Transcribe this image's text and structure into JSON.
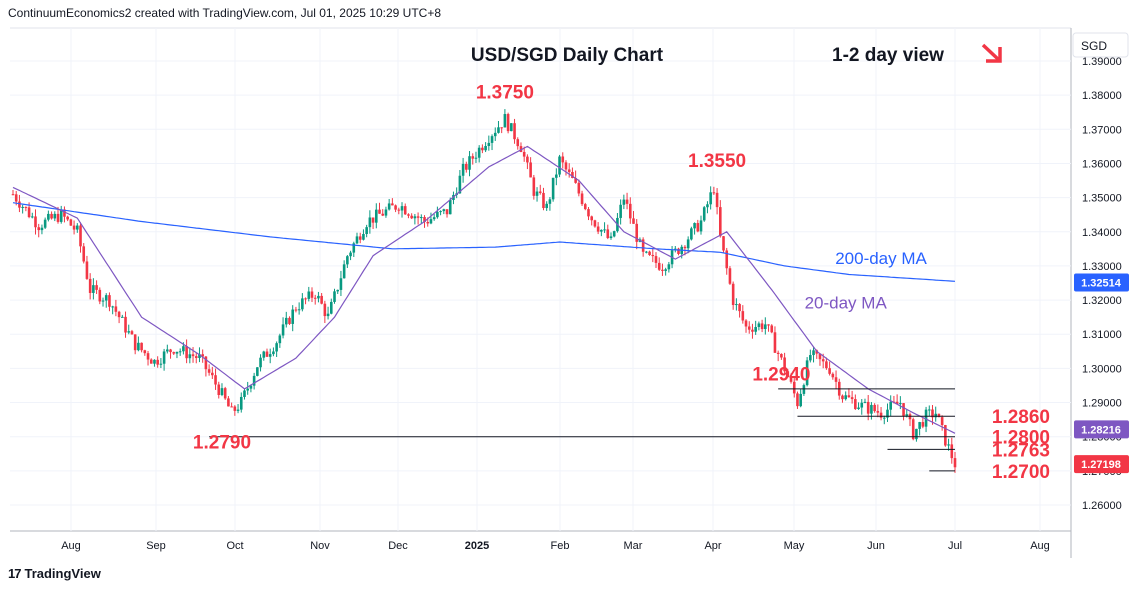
{
  "header": {
    "text": "ContinuumEconomics2 created with TradingView.com, Jul 01, 2025 10:29 UTC+8"
  },
  "footer": {
    "brand": "TradingView",
    "logo": "17"
  },
  "colors": {
    "up": "#089981",
    "down": "#f23645",
    "ma200": "#2962ff",
    "ma20": "#7e57c2",
    "annot": "#f23645",
    "level": "#131722"
  },
  "chart_data": {
    "type": "candlestick",
    "title": "USD/SGD Daily Chart",
    "view": "1-2 day view",
    "currency": "SGD",
    "ylim": [
      1.254,
      1.395
    ],
    "yticks": [
      "1.26000",
      "1.27000",
      "1.28000",
      "1.29000",
      "1.30000",
      "1.31000",
      "1.32000",
      "1.33000",
      "1.34000",
      "1.35000",
      "1.36000",
      "1.37000",
      "1.38000",
      "1.39000"
    ],
    "xticks": [
      "Aug",
      "Sep",
      "Oct",
      "Nov",
      "Dec",
      "2025",
      "Feb",
      "Mar",
      "Apr",
      "May",
      "Jun",
      "Jul",
      "Aug"
    ],
    "price_anchors": [
      [
        0,
        1.351
      ],
      [
        8,
        1.342
      ],
      [
        15,
        1.345
      ],
      [
        20,
        1.34
      ],
      [
        24,
        1.323
      ],
      [
        30,
        1.32
      ],
      [
        38,
        1.307
      ],
      [
        44,
        1.302
      ],
      [
        50,
        1.306
      ],
      [
        58,
        1.303
      ],
      [
        64,
        1.294
      ],
      [
        68,
        1.287
      ],
      [
        71,
        1.29
      ],
      [
        76,
        1.301
      ],
      [
        82,
        1.308
      ],
      [
        88,
        1.318
      ],
      [
        94,
        1.322
      ],
      [
        98,
        1.315
      ],
      [
        104,
        1.333
      ],
      [
        110,
        1.343
      ],
      [
        120,
        1.348
      ],
      [
        128,
        1.343
      ],
      [
        135,
        1.346
      ],
      [
        140,
        1.358
      ],
      [
        148,
        1.368
      ],
      [
        153,
        1.373
      ],
      [
        158,
        1.365
      ],
      [
        162,
        1.352
      ],
      [
        166,
        1.347
      ],
      [
        170,
        1.361
      ],
      [
        174,
        1.355
      ],
      [
        180,
        1.344
      ],
      [
        186,
        1.337
      ],
      [
        190,
        1.35
      ],
      [
        196,
        1.333
      ],
      [
        202,
        1.33
      ],
      [
        208,
        1.336
      ],
      [
        214,
        1.343
      ],
      [
        218,
        1.353
      ],
      [
        220,
        1.338
      ],
      [
        224,
        1.32
      ],
      [
        228,
        1.312
      ],
      [
        234,
        1.313
      ],
      [
        240,
        1.3
      ],
      [
        244,
        1.29
      ],
      [
        248,
        1.304
      ],
      [
        254,
        1.3
      ],
      [
        258,
        1.292
      ],
      [
        264,
        1.289
      ],
      [
        270,
        1.287
      ],
      [
        276,
        1.29
      ],
      [
        280,
        1.281
      ],
      [
        284,
        1.286
      ],
      [
        287,
        1.287
      ],
      [
        290,
        1.279
      ],
      [
        293,
        1.272
      ]
    ],
    "ma200_anchors": [
      [
        0,
        1.3485
      ],
      [
        40,
        1.343
      ],
      [
        80,
        1.3385
      ],
      [
        118,
        1.335
      ],
      [
        150,
        1.3355
      ],
      [
        170,
        1.337
      ],
      [
        200,
        1.335
      ],
      [
        220,
        1.334
      ],
      [
        240,
        1.33
      ],
      [
        260,
        1.3275
      ],
      [
        293,
        1.3255
      ]
    ],
    "ma20_anchors": [
      [
        0,
        1.353
      ],
      [
        20,
        1.344
      ],
      [
        40,
        1.315
      ],
      [
        58,
        1.304
      ],
      [
        72,
        1.294
      ],
      [
        88,
        1.303
      ],
      [
        100,
        1.315
      ],
      [
        112,
        1.333
      ],
      [
        128,
        1.343
      ],
      [
        148,
        1.359
      ],
      [
        160,
        1.365
      ],
      [
        176,
        1.355
      ],
      [
        190,
        1.34
      ],
      [
        206,
        1.332
      ],
      [
        222,
        1.34
      ],
      [
        236,
        1.323
      ],
      [
        250,
        1.305
      ],
      [
        266,
        1.294
      ],
      [
        280,
        1.287
      ],
      [
        293,
        1.281
      ]
    ],
    "annotations": [
      {
        "text": "1.3750",
        "x": 153,
        "y": 1.379
      },
      {
        "text": "1.3550",
        "x": 219,
        "y": 1.359
      },
      {
        "text": "1.2940",
        "x": 239,
        "y": 1.2965
      },
      {
        "text": "1.2790",
        "x": 65,
        "y": 1.2765
      }
    ],
    "right_labels": [
      {
        "text": "1.2860",
        "y": 1.286
      },
      {
        "text": "1.2800",
        "y": 1.28
      },
      {
        "text": "1.2763",
        "y": 1.2763
      },
      {
        "text": "1.2700",
        "y": 1.27
      }
    ],
    "ma_labels": [
      {
        "text": "200-day MA",
        "x": 270,
        "y": 1.3305
      },
      {
        "text": "20-day MA",
        "x": 259,
        "y": 1.3175
      }
    ],
    "levels": [
      {
        "y": 1.294,
        "x0": 238,
        "x1": 293
      },
      {
        "y": 1.286,
        "x0": 244,
        "x1": 293
      },
      {
        "y": 1.28,
        "x0": 61,
        "x1": 293
      },
      {
        "y": 1.2763,
        "x0": 272,
        "x1": 293
      },
      {
        "y": 1.27,
        "x0": 285,
        "x1": 293
      }
    ],
    "badges": [
      {
        "text": "1.32514",
        "y": 1.32514,
        "bg": "#2962ff"
      },
      {
        "text": "1.28216",
        "y": 1.28216,
        "bg": "#7e57c2"
      },
      {
        "text": "1.27198",
        "y": 1.27198,
        "bg": "#f23645"
      }
    ],
    "n_bars": 294
  }
}
